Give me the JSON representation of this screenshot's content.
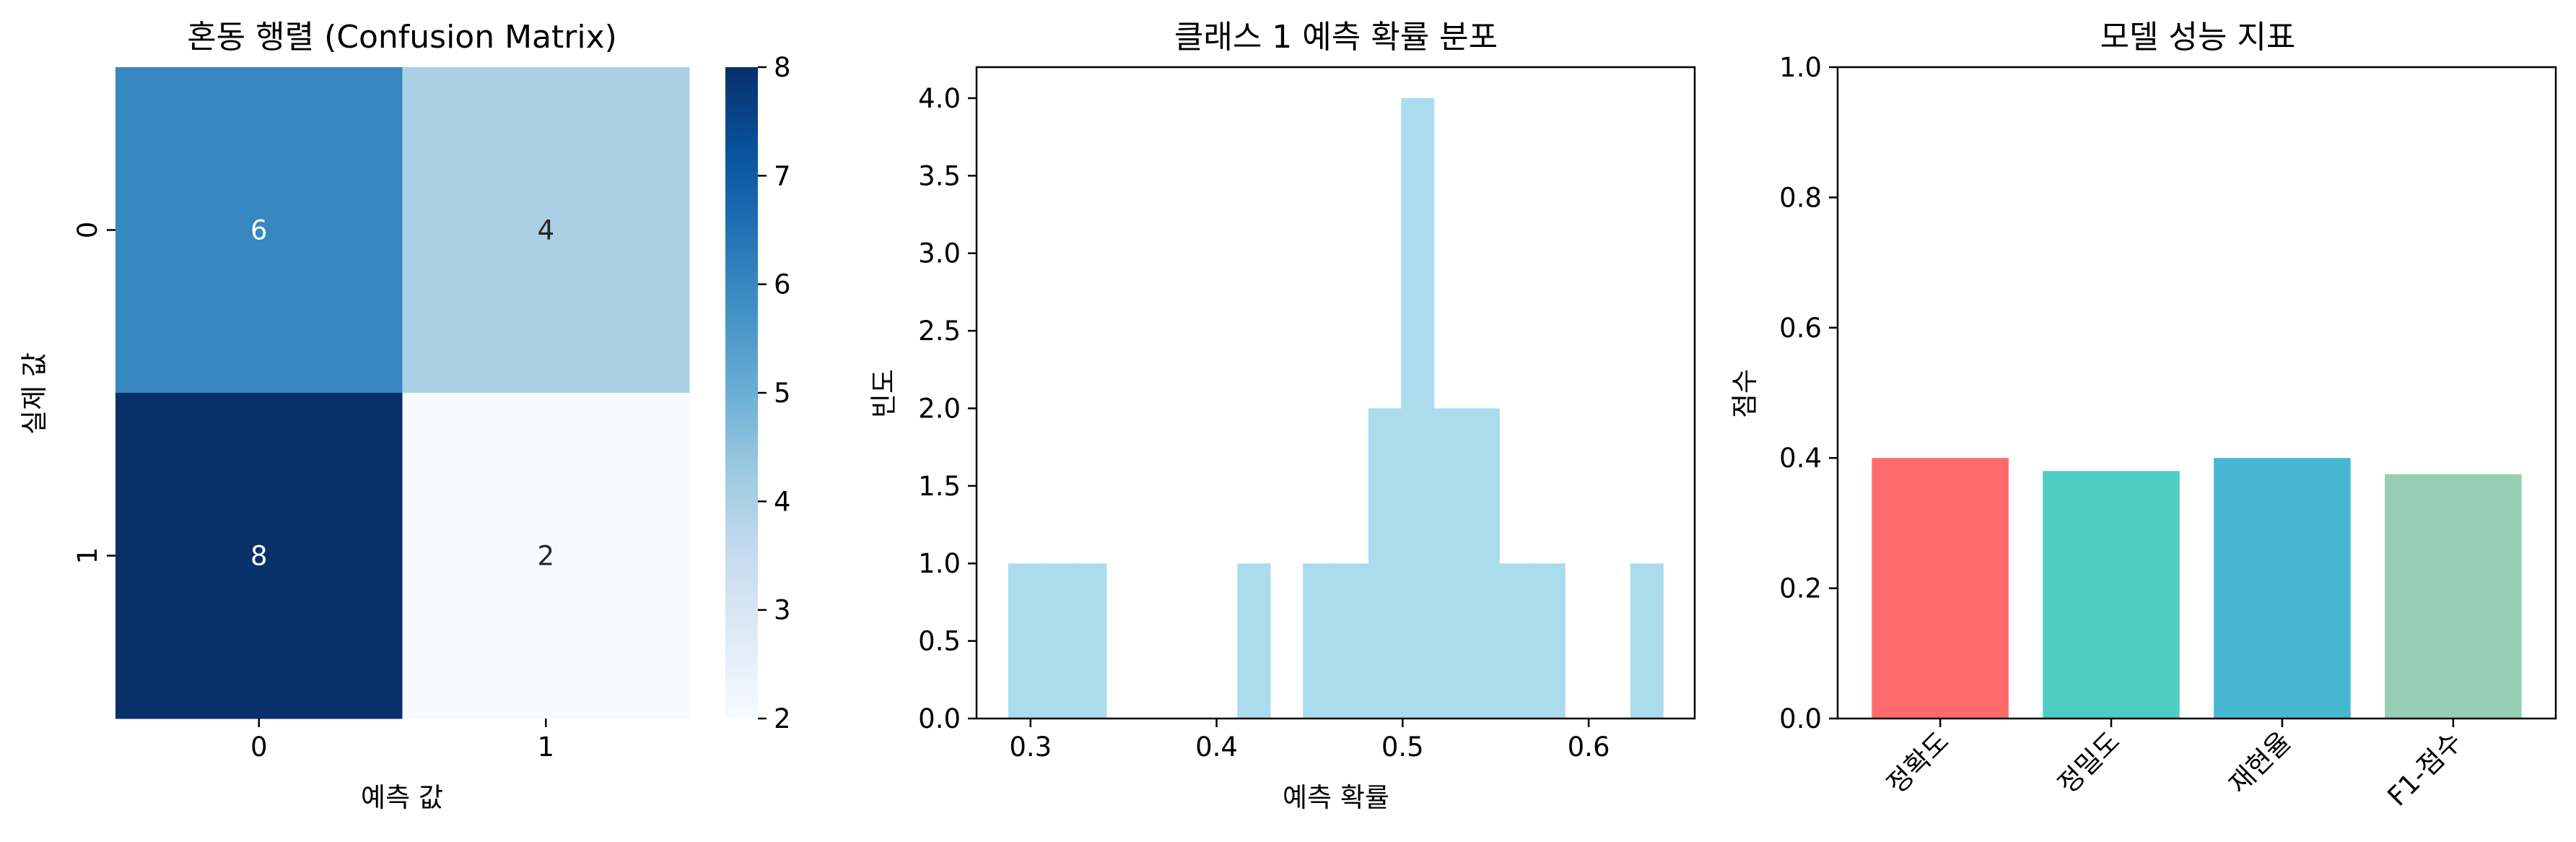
{
  "chart_data": [
    {
      "type": "heatmap",
      "title": "혼동 행렬 (Confusion Matrix)",
      "xlabel": "예측 값",
      "ylabel": "실제 값",
      "x_categories": [
        "0",
        "1"
      ],
      "y_categories": [
        "0",
        "1"
      ],
      "values": [
        [
          6,
          4
        ],
        [
          8,
          2
        ]
      ],
      "colorbar": {
        "min": 2,
        "max": 8,
        "ticks": [
          2,
          3,
          4,
          5,
          6,
          7,
          8
        ]
      },
      "colormap": "Blues"
    },
    {
      "type": "bar",
      "subtype": "histogram",
      "title": "클래스 1 예측 확률 분포",
      "xlabel": "예측 확률",
      "ylabel": "빈도",
      "xlim": [
        0.271,
        0.657
      ],
      "ylim": [
        0,
        4.2
      ],
      "xticks": [
        0.3,
        0.4,
        0.5,
        0.6
      ],
      "yticks": [
        0.0,
        0.5,
        1.0,
        1.5,
        2.0,
        2.5,
        3.0,
        3.5,
        4.0
      ],
      "bin_start": 0.288,
      "bin_width": 0.0176,
      "counts": [
        1,
        1,
        1,
        0,
        0,
        0,
        0,
        1,
        0,
        1,
        1,
        2,
        4,
        2,
        2,
        1,
        1,
        0,
        0,
        1
      ],
      "color": "#aadcee"
    },
    {
      "type": "bar",
      "title": "모델 성능 지표",
      "xlabel": "",
      "ylabel": "점수",
      "ylim": [
        0,
        1.0
      ],
      "yticks": [
        0.0,
        0.2,
        0.4,
        0.6,
        0.8,
        1.0
      ],
      "categories": [
        "정확도",
        "정밀도",
        "재현율",
        "F1-점수"
      ],
      "values": [
        0.4,
        0.38,
        0.4,
        0.375
      ],
      "colors": [
        "#ff6b6b",
        "#4ecdc4",
        "#45b7d1",
        "#96ceb4"
      ]
    }
  ]
}
